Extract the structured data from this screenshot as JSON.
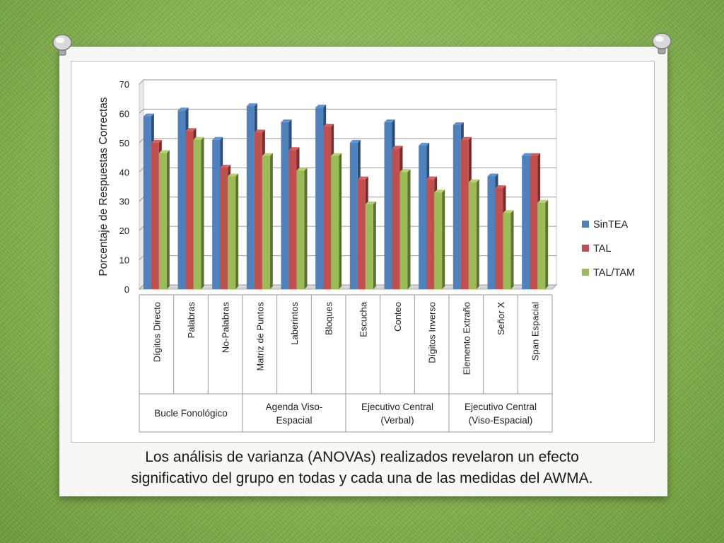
{
  "caption": {
    "line1": "Los análisis de varianza (ANOVAs) realizados revelaron un efecto",
    "line2": "significativo del grupo en todas y cada una de las medidas del AWMA."
  },
  "chart_data": {
    "type": "bar",
    "title": "",
    "xlabel": "",
    "ylabel": "Porcentaje de Respuestas Correctas",
    "ylim": [
      0,
      70
    ],
    "yticks": [
      0,
      10,
      20,
      30,
      40,
      50,
      60,
      70
    ],
    "grid": true,
    "legend_position": "right",
    "categories": [
      "Dígitos Directo",
      "Palabras",
      "No-Palabras",
      "Matriz de Puntos",
      "Laberintos",
      "Bloques",
      "Escucha",
      "Conteo",
      "Dígitos Inverso",
      "Elemento Extraño",
      "Señor X",
      "Span Espacial"
    ],
    "groups": [
      {
        "label": "Bucle Fonológico",
        "count": 3
      },
      {
        "label": "Agenda Viso-\nEspacial",
        "count": 3
      },
      {
        "label": "Ejecutivo Central\n(Verbal)",
        "count": 3
      },
      {
        "label": "Ejecutivo Central\n(Viso-Espacial)",
        "count": 3
      }
    ],
    "series": [
      {
        "name": "SinTEA",
        "color": "#4f81bd",
        "values": [
          59,
          61,
          51,
          62.5,
          57,
          62,
          50,
          57,
          49,
          56,
          38.5,
          45.5
        ]
      },
      {
        "name": "TAL",
        "color": "#c0504d",
        "values": [
          50,
          54,
          41.5,
          53.5,
          47.5,
          55.5,
          37.5,
          48,
          37.5,
          51,
          34.5,
          45.5
        ]
      },
      {
        "name": "TAL/TAM",
        "color": "#9bbb59",
        "values": [
          46.5,
          51,
          38.5,
          45.5,
          40.5,
          45.5,
          29,
          40,
          33,
          36.5,
          26,
          29.5
        ]
      }
    ]
  }
}
